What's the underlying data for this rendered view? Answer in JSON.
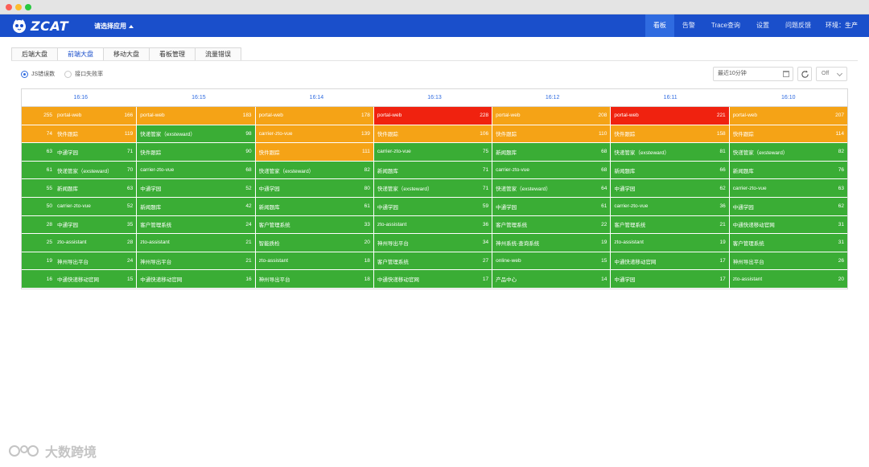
{
  "app": {
    "logo_text": "ZCAT",
    "app_select": "请选择应用"
  },
  "nav": {
    "items": [
      "看板",
      "告警",
      "Trace查询",
      "设置",
      "问题反馈"
    ],
    "active": 0,
    "env_label": "环境：生产"
  },
  "tabs": {
    "items": [
      "后端大盘",
      "前端大盘",
      "移动大盘",
      "看板管理",
      "流量错误"
    ],
    "active": 1
  },
  "filters": {
    "radios": [
      {
        "label": "JS错误数",
        "checked": true
      },
      {
        "label": "接口失败率",
        "checked": false
      }
    ],
    "time_range": "最近10分钟",
    "auto_refresh": "Off"
  },
  "colors": {
    "green": "#3aad35",
    "orange": "#f5a316",
    "red": "#f0220f"
  },
  "grid": {
    "times": [
      "16:16",
      "16:15",
      "16:14",
      "16:13",
      "16:12",
      "16:11",
      "16:10"
    ],
    "rows": [
      {
        "lead": "255",
        "cells": [
          {
            "name": "portal-web",
            "count": "166",
            "level": "orange"
          },
          {
            "name": "portal-web",
            "count": "183",
            "level": "orange"
          },
          {
            "name": "portal-web",
            "count": "178",
            "level": "orange"
          },
          {
            "name": "portal-web",
            "count": "228",
            "level": "red"
          },
          {
            "name": "portal-web",
            "count": "208",
            "level": "orange"
          },
          {
            "name": "portal-web",
            "count": "221",
            "level": "red"
          },
          {
            "name": "portal-web",
            "count": "207",
            "level": "orange"
          }
        ]
      },
      {
        "lead": "74",
        "cells": [
          {
            "name": "快件跟踪",
            "count": "119",
            "level": "orange"
          },
          {
            "name": "快递管家（exsteward）",
            "count": "98",
            "level": "green"
          },
          {
            "name": "carrier-zto-vue",
            "count": "139",
            "level": "orange"
          },
          {
            "name": "快件跟踪",
            "count": "106",
            "level": "orange"
          },
          {
            "name": "快件跟踪",
            "count": "110",
            "level": "orange"
          },
          {
            "name": "快件跟踪",
            "count": "158",
            "level": "orange"
          },
          {
            "name": "快件跟踪",
            "count": "114",
            "level": "orange"
          }
        ]
      },
      {
        "lead": "63",
        "cells": [
          {
            "name": "中通学园",
            "count": "71",
            "level": "green"
          },
          {
            "name": "快件跟踪",
            "count": "90",
            "level": "green"
          },
          {
            "name": "快件跟踪",
            "count": "111",
            "level": "orange"
          },
          {
            "name": "carrier-zto-vue",
            "count": "75",
            "level": "green"
          },
          {
            "name": "新闻题库",
            "count": "68",
            "level": "green"
          },
          {
            "name": "快递管家（exsteward）",
            "count": "81",
            "level": "green"
          },
          {
            "name": "快递管家（exsteward）",
            "count": "82",
            "level": "green"
          }
        ]
      },
      {
        "lead": "61",
        "cells": [
          {
            "name": "快递管家（exsteward）",
            "count": "70",
            "level": "green"
          },
          {
            "name": "carrier-zto-vue",
            "count": "68",
            "level": "green"
          },
          {
            "name": "快递管家（exsteward）",
            "count": "82",
            "level": "green"
          },
          {
            "name": "新闻题库",
            "count": "71",
            "level": "green"
          },
          {
            "name": "carrier-zto-vue",
            "count": "68",
            "level": "green"
          },
          {
            "name": "新闻题库",
            "count": "66",
            "level": "green"
          },
          {
            "name": "新闻题库",
            "count": "76",
            "level": "green"
          }
        ]
      },
      {
        "lead": "55",
        "cells": [
          {
            "name": "新闻题库",
            "count": "63",
            "level": "green"
          },
          {
            "name": "中通学园",
            "count": "52",
            "level": "green"
          },
          {
            "name": "中通学园",
            "count": "80",
            "level": "green"
          },
          {
            "name": "快递管家（exsteward）",
            "count": "71",
            "level": "green"
          },
          {
            "name": "快递管家（exsteward）",
            "count": "64",
            "level": "green"
          },
          {
            "name": "中通学园",
            "count": "62",
            "level": "green"
          },
          {
            "name": "carrier-zto-vue",
            "count": "63",
            "level": "green"
          }
        ]
      },
      {
        "lead": "50",
        "cells": [
          {
            "name": "carrier-zto-vue",
            "count": "52",
            "level": "green"
          },
          {
            "name": "新闻题库",
            "count": "42",
            "level": "green"
          },
          {
            "name": "新闻题库",
            "count": "61",
            "level": "green"
          },
          {
            "name": "中通学园",
            "count": "59",
            "level": "green"
          },
          {
            "name": "中通学园",
            "count": "61",
            "level": "green"
          },
          {
            "name": "carrier-zto-vue",
            "count": "36",
            "level": "green"
          },
          {
            "name": "中通学园",
            "count": "62",
            "level": "green"
          }
        ]
      },
      {
        "lead": "28",
        "cells": [
          {
            "name": "中通学园",
            "count": "35",
            "level": "green"
          },
          {
            "name": "客户管理系统",
            "count": "24",
            "level": "green"
          },
          {
            "name": "客户管理系统",
            "count": "33",
            "level": "green"
          },
          {
            "name": "zto-assistant",
            "count": "36",
            "level": "green"
          },
          {
            "name": "客户管理系统",
            "count": "22",
            "level": "green"
          },
          {
            "name": "客户管理系统",
            "count": "21",
            "level": "green"
          },
          {
            "name": "中通快递移动官网",
            "count": "31",
            "level": "green"
          }
        ]
      },
      {
        "lead": "25",
        "cells": [
          {
            "name": "zto-assistant",
            "count": "28",
            "level": "green"
          },
          {
            "name": "zto-assistant",
            "count": "21",
            "level": "green"
          },
          {
            "name": "智能质检",
            "count": "20",
            "level": "green"
          },
          {
            "name": "神州导出平台",
            "count": "34",
            "level": "green"
          },
          {
            "name": "神州系统-查询系统",
            "count": "19",
            "level": "green"
          },
          {
            "name": "zto-assistant",
            "count": "19",
            "level": "green"
          },
          {
            "name": "客户管理系统",
            "count": "31",
            "level": "green"
          }
        ]
      },
      {
        "lead": "19",
        "cells": [
          {
            "name": "神州导出平台",
            "count": "24",
            "level": "green"
          },
          {
            "name": "神州导出平台",
            "count": "21",
            "level": "green"
          },
          {
            "name": "zto-assistant",
            "count": "18",
            "level": "green"
          },
          {
            "name": "客户管理系统",
            "count": "27",
            "level": "green"
          },
          {
            "name": "online-web",
            "count": "15",
            "level": "green"
          },
          {
            "name": "中通快递移动官网",
            "count": "17",
            "level": "green"
          },
          {
            "name": "神州导出平台",
            "count": "26",
            "level": "green"
          }
        ]
      },
      {
        "lead": "16",
        "cells": [
          {
            "name": "中通快递移动官网",
            "count": "15",
            "level": "green"
          },
          {
            "name": "中通快递移动官网",
            "count": "16",
            "level": "green"
          },
          {
            "name": "神州导出平台",
            "count": "18",
            "level": "green"
          },
          {
            "name": "中通快递移动官网",
            "count": "17",
            "level": "green"
          },
          {
            "name": "产品中心",
            "count": "14",
            "level": "green"
          },
          {
            "name": "中通学园",
            "count": "17",
            "level": "green"
          },
          {
            "name": "zto-assistant",
            "count": "20",
            "level": "green"
          }
        ]
      }
    ]
  },
  "watermark": {
    "text": "大数跨境"
  }
}
